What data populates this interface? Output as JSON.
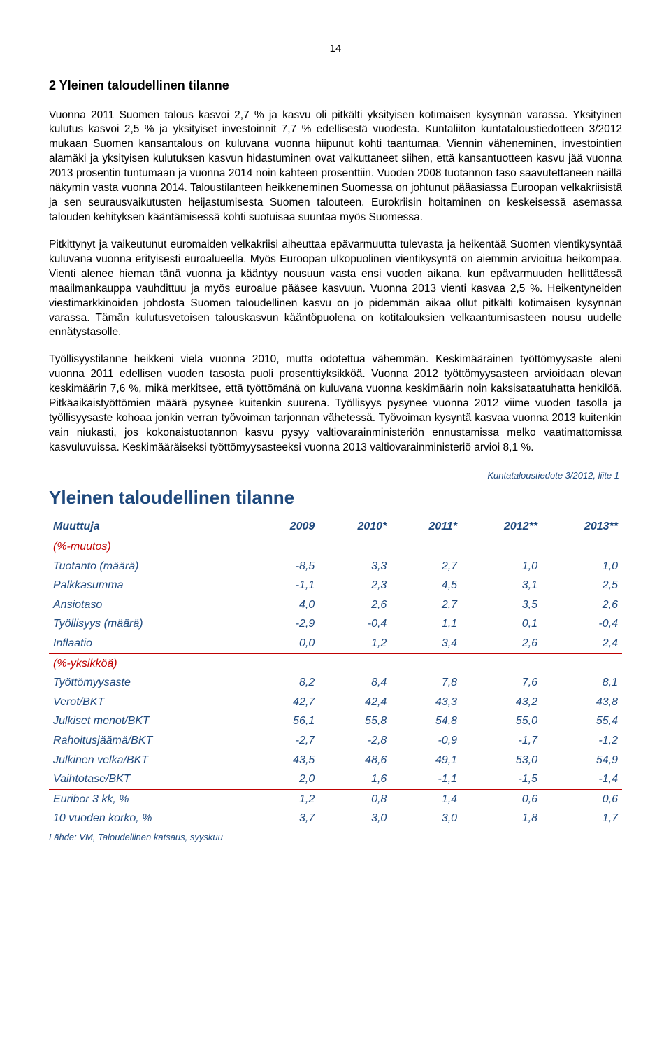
{
  "page_number": "14",
  "section_title": "2 Yleinen taloudellinen tilanne",
  "paragraphs": {
    "p1": "Vuonna 2011 Suomen talous kasvoi 2,7 % ja kasvu oli pitkälti yksityisen kotimaisen kysynnän varassa. Yksityinen kulutus kasvoi 2,5 % ja yksityiset investoinnit 7,7 % edellisestä vuodesta. Kuntaliiton kuntataloustiedotteen 3/2012 mukaan Suomen kansantalous on kuluvana vuonna hiipunut kohti taantumaa. Viennin väheneminen, investointien alamäki ja yksityisen kulutuksen kasvun hidastuminen ovat vaikuttaneet siihen, että kansantuotteen kasvu jää vuonna 2013 prosentin tuntumaan ja vuonna 2014 noin kahteen prosenttiin. Vuoden 2008 tuotannon taso saavutettaneen näillä näkymin vasta vuonna 2014. Taloustilanteen heikkeneminen Suomessa on johtunut pääasiassa Euroopan velkakriisistä ja sen seurausvaikutusten heijastumisesta Suomen talouteen. Eurokriisin hoitaminen on keskeisessä asemassa talouden kehityksen kääntämisessä kohti suotuisaa suuntaa myös Suomessa.",
    "p2": "Pitkittynyt ja vaikeutunut euromaiden velkakriisi aiheuttaa epävarmuutta tulevasta ja heikentää Suomen vientikysyntää kuluvana vuonna erityisesti euroalueella. Myös Euroopan ulkopuolinen vientikysyntä on aiemmin arvioitua heikompaa. Vienti alenee hieman tänä vuonna ja kääntyy nousuun vasta ensi vuoden aikana, kun epävarmuuden hellittäessä maailmankauppa vauhdittuu ja myös euroalue pääsee kasvuun. Vuonna 2013 vienti kasvaa 2,5 %. Heikentyneiden viestimarkkinoiden johdosta Suomen taloudellinen kasvu on jo pidemmän aikaa ollut pitkälti kotimaisen kysynnän varassa. Tämän kulutusvetoisen talouskasvun kääntöpuolena on kotitalouksien velkaantumisasteen nousu uudelle ennätystasolle.",
    "p3": "Työllisyystilanne heikkeni vielä vuonna 2010, mutta odotettua vähemmän. Keskimääräinen työttömyysaste aleni vuonna 2011 edellisen vuoden tasosta puoli prosenttiyksikköä. Vuonna 2012 työttömyysasteen arvioidaan olevan keskimäärin 7,6 %, mikä merkitsee, että työttömänä on kuluvana vuonna keskimäärin noin kaksisataatuhatta henkilöä. Pitkäaikaistyöttömien määrä pysynee kuitenkin suurena. Työllisyys pysynee vuonna 2012 viime vuoden tasolla ja työllisyysaste kohoaa jonkin verran työvoiman tarjonnan vähetessä. Työvoiman kysyntä kasvaa vuonna 2013 kuitenkin vain niukasti, jos kokonaistuotannon kasvu pysyy valtiovarainministeriön ennustamissa melko vaatimattomissa kasvuluvuissa. Keskimääräiseksi työttömyysasteeksi vuonna 2013 valtiovarainministeriö arvioi 8,1 %."
  },
  "table": {
    "source_ref": "Kuntataloustiedote 3/2012, liite 1",
    "title": "Yleinen taloudellinen tilanne",
    "header_label": "Muuttuja",
    "years": [
      "2009",
      "2010*",
      "2011*",
      "2012**",
      "2013**"
    ],
    "subhead1": "(%-muutos)",
    "subhead2": "(%-yksikköä)",
    "group1": [
      {
        "label": "Tuotanto (määrä)",
        "v": [
          "-8,5",
          "3,3",
          "2,7",
          "1,0",
          "1,0"
        ]
      },
      {
        "label": "Palkkasumma",
        "v": [
          "-1,1",
          "2,3",
          "4,5",
          "3,1",
          "2,5"
        ]
      },
      {
        "label": "Ansiotaso",
        "v": [
          "4,0",
          "2,6",
          "2,7",
          "3,5",
          "2,6"
        ]
      },
      {
        "label": "Työllisyys (määrä)",
        "v": [
          "-2,9",
          "-0,4",
          "1,1",
          "0,1",
          "-0,4"
        ]
      },
      {
        "label": "Inflaatio",
        "v": [
          "0,0",
          "1,2",
          "3,4",
          "2,6",
          "2,4"
        ]
      }
    ],
    "group2": [
      {
        "label": "Työttömyysaste",
        "v": [
          "8,2",
          "8,4",
          "7,8",
          "7,6",
          "8,1"
        ]
      },
      {
        "label": "Verot/BKT",
        "v": [
          "42,7",
          "42,4",
          "43,3",
          "43,2",
          "43,8"
        ]
      },
      {
        "label": "Julkiset menot/BKT",
        "v": [
          "56,1",
          "55,8",
          "54,8",
          "55,0",
          "55,4"
        ]
      },
      {
        "label": "Rahoitusjäämä/BKT",
        "v": [
          "-2,7",
          "-2,8",
          "-0,9",
          "-1,7",
          "-1,2"
        ]
      },
      {
        "label": "Julkinen velka/BKT",
        "v": [
          "43,5",
          "48,6",
          "49,1",
          "53,0",
          "54,9"
        ]
      },
      {
        "label": "Vaihtotase/BKT",
        "v": [
          "2,0",
          "1,6",
          "-1,1",
          "-1,5",
          "-1,4"
        ]
      }
    ],
    "group3": [
      {
        "label": "Euribor 3 kk, %",
        "v": [
          "1,2",
          "0,8",
          "1,4",
          "0,6",
          "0,6"
        ]
      },
      {
        "label": "10 vuoden korko, %",
        "v": [
          "3,7",
          "3,0",
          "3,0",
          "1,8",
          "1,7"
        ]
      }
    ],
    "footnote": "Lähde: VM, Taloudellinen katsaus, syyskuu"
  }
}
